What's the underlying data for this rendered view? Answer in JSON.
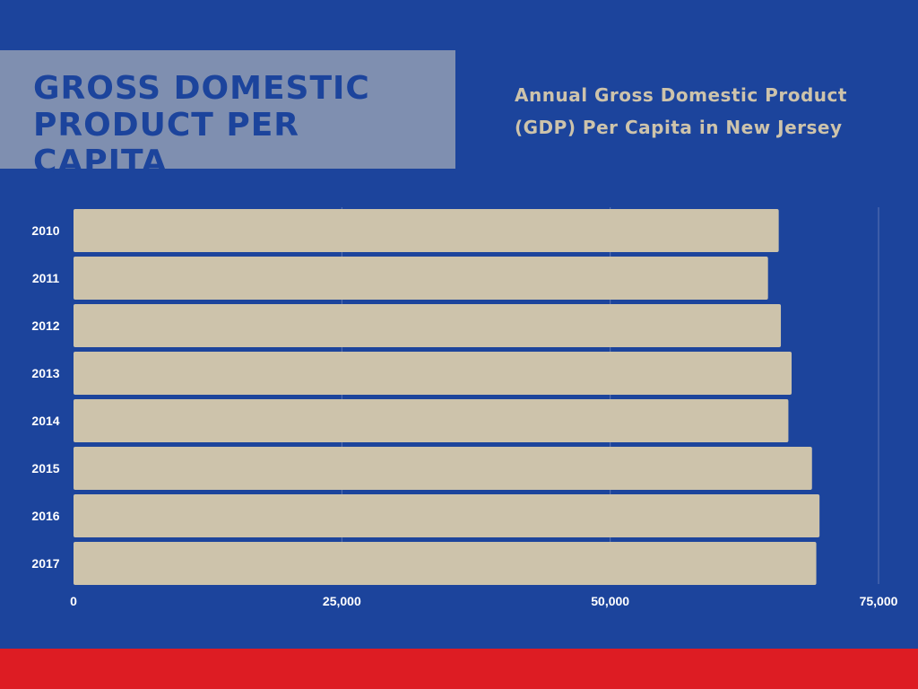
{
  "header": {
    "title": "GROSS DOMESTIC PRODUCT PER CAPITA",
    "subtitle": "Annual Gross Domestic Product (GDP) Per Capita in New Jersey"
  },
  "colors": {
    "background": "#1c449c",
    "title_box": "#7f8fb0",
    "bar": "#cdc3ab",
    "text_light": "#cdc3ab",
    "axis_text": "#ffffff",
    "footer": "#dd1c23"
  },
  "chart_data": {
    "type": "bar",
    "orientation": "horizontal",
    "title": "Annual Gross Domestic Product (GDP) Per Capita in New Jersey",
    "categories": [
      "2010",
      "2011",
      "2012",
      "2013",
      "2014",
      "2015",
      "2016",
      "2017"
    ],
    "values": [
      65700,
      64700,
      65900,
      66900,
      66600,
      68800,
      69500,
      69200
    ],
    "xlim": [
      0,
      75000
    ],
    "x_ticks": [
      0,
      25000,
      50000,
      75000
    ],
    "x_tick_labels": [
      "0",
      "25,000",
      "50,000",
      "75,000"
    ],
    "xlabel": "",
    "ylabel": "",
    "grid": true,
    "legend": "none"
  }
}
